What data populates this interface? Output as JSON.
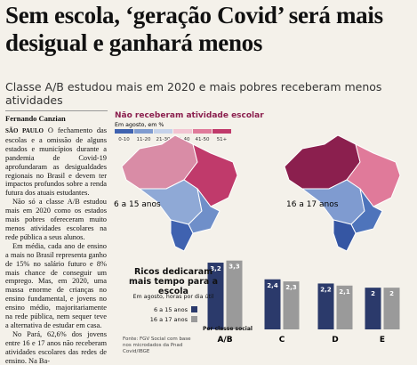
{
  "headline": "Sem escola, ‘geração Covid’ será mais desigual e ganhará menos",
  "subtitle": "Classe A/B estudou mais em 2020 e mais pobres receberam menos atividades",
  "byline": "Fernando Canzian",
  "dateline": "SÃO PAULO",
  "body": [
    "O fechamento das escolas e a omissão de alguns estados e municípios durante a pandemia de Covid-19 aprofundaram as desigualdades regionais no Brasil e devem ter impactos profundos sobre a renda futura dos atuais estudantes.",
    "Não só a classe A/B estudou mais em 2020 como os estados mais pobres ofereceram muito menos atividades escolares na rede pública a seus alunos.",
    "Em média, cada ano de ensino a mais no Brasil representa ganho de 15% no salário futuro e 8% mais chance de conseguir um emprego. Mas, em 2020, uma massa enorme de crianças no ensino fundamental, e jovens no ensino médio, majoritariamente na rede pública, nem sequer teve a alternativa de estudar em casa.",
    "No Pará, 62,6% dos jovens entre 16 e 17 anos não receberam atividades escolares das redes de ensino. Na Ba-"
  ],
  "map_legend": {
    "title": "Não receberam atividade escolar",
    "subtitle": "Em agosto, em %",
    "classes": [
      "0-10",
      "11-20",
      "21-30",
      "31-40",
      "41-50",
      "51+"
    ],
    "colors": [
      "#3f62b0",
      "#7f9bd0",
      "#c5d2ea",
      "#f2c4d2",
      "#e07a9a",
      "#c03a6b"
    ]
  },
  "maps": [
    "6 a 15 anos",
    "16 a 17 anos"
  ],
  "chart_data": {
    "type": "bar",
    "title": "Ricos dedicaram mais tempo para a escola",
    "subtitle": "Em agosto, horas por dia útil",
    "x_label": "Por classe social",
    "categories": [
      "A/B",
      "C",
      "D",
      "E"
    ],
    "series": [
      {
        "name": "6 a 15 anos",
        "color": "#2b3a6b",
        "values": [
          3.2,
          2.4,
          2.2,
          2
        ],
        "value_labels": [
          "3,2",
          "2,4",
          "2,2",
          "2"
        ]
      },
      {
        "name": "16 a 17 anos",
        "color": "#9a9a9a",
        "values": [
          3.3,
          2.3,
          2.1,
          2
        ],
        "value_labels": [
          "3,3",
          "2,3",
          "2,1",
          "2"
        ]
      }
    ],
    "ylim": [
      0,
      3.5
    ],
    "source": "Fonte: FGV Social com base nos microdados da Pnad Covid/IBGE"
  }
}
